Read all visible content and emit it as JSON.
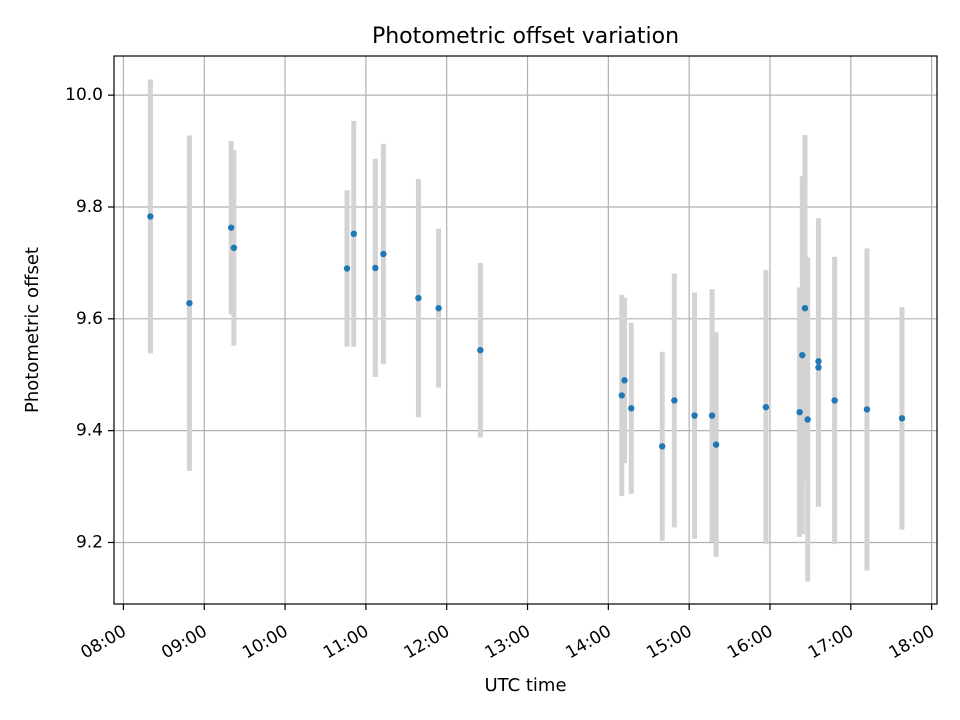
{
  "chart_data": {
    "type": "scatter",
    "title": "Photometric offset variation",
    "xlabel": "UTC time",
    "ylabel": "Photometric offset",
    "xlim": [
      "07:53",
      "18:04"
    ],
    "ylim": [
      9.09,
      10.07
    ],
    "grid": true,
    "xticks": [
      "08:00",
      "09:00",
      "10:00",
      "11:00",
      "12:00",
      "13:00",
      "14:00",
      "15:00",
      "16:00",
      "17:00",
      "18:00"
    ],
    "yticks": [
      9.2,
      9.4,
      9.6,
      9.8,
      10.0
    ],
    "colors": {
      "point": "#1f77b4",
      "errorbar": "#d3d3d3",
      "grid": "#b0b0b0"
    },
    "series": [
      {
        "points": [
          {
            "x": "08:20",
            "y": 9.783,
            "err": 0.245
          },
          {
            "x": "08:49",
            "y": 9.628,
            "err": 0.3
          },
          {
            "x": "09:20",
            "y": 9.763,
            "err": 0.155
          },
          {
            "x": "09:22",
            "y": 9.727,
            "err": 0.175
          },
          {
            "x": "10:46",
            "y": 9.69,
            "err": 0.14
          },
          {
            "x": "10:51",
            "y": 9.752,
            "err": 0.202
          },
          {
            "x": "11:07",
            "y": 9.691,
            "err": 0.195
          },
          {
            "x": "11:13",
            "y": 9.716,
            "err": 0.197
          },
          {
            "x": "11:39",
            "y": 9.637,
            "err": 0.213
          },
          {
            "x": "11:54",
            "y": 9.619,
            "err": 0.142
          },
          {
            "x": "12:25",
            "y": 9.544,
            "err": 0.156
          },
          {
            "x": "14:10",
            "y": 9.463,
            "err": 0.18
          },
          {
            "x": "14:12",
            "y": 9.49,
            "err": 0.148
          },
          {
            "x": "14:17",
            "y": 9.44,
            "err": 0.153
          },
          {
            "x": "14:40",
            "y": 9.372,
            "err": 0.169
          },
          {
            "x": "14:49",
            "y": 9.454,
            "err": 0.227
          },
          {
            "x": "15:04",
            "y": 9.427,
            "err": 0.22
          },
          {
            "x": "15:17",
            "y": 9.427,
            "err": 0.226
          },
          {
            "x": "15:20",
            "y": 9.375,
            "err": 0.201
          },
          {
            "x": "15:57",
            "y": 9.442,
            "err": 0.245
          },
          {
            "x": "16:22",
            "y": 9.433,
            "err": 0.223
          },
          {
            "x": "16:24",
            "y": 9.535,
            "err": 0.32
          },
          {
            "x": "16:26",
            "y": 9.619,
            "err": 0.31
          },
          {
            "x": "16:28",
            "y": 9.42,
            "err": 0.29
          },
          {
            "x": "16:36",
            "y": 9.524,
            "err": 0.256
          },
          {
            "x": "16:36",
            "y": 9.513,
            "err": 0.249
          },
          {
            "x": "16:48",
            "y": 9.454,
            "err": 0.257
          },
          {
            "x": "17:12",
            "y": 9.438,
            "err": 0.288
          },
          {
            "x": "17:38",
            "y": 9.422,
            "err": 0.199
          }
        ]
      }
    ]
  }
}
